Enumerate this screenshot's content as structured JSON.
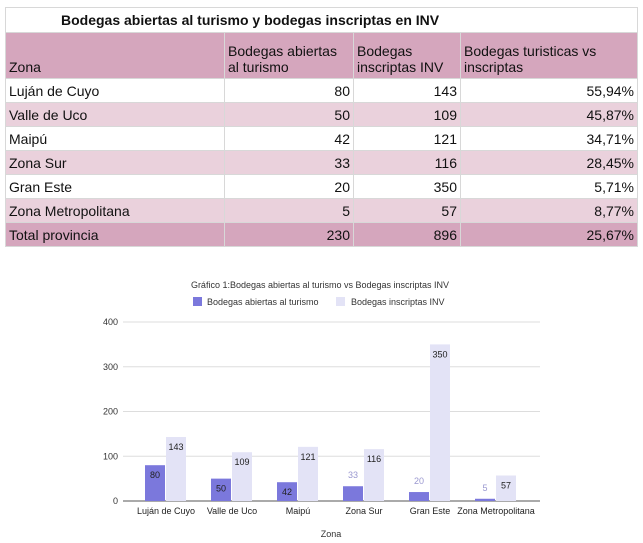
{
  "table": {
    "title": "Bodegas abiertas al turismo y bodegas inscriptas en INV",
    "headers": [
      "Zona",
      "Bodegas abiertas al turismo",
      "Bodegas inscriptas INV",
      "Bodegas turisticas vs inscriptas"
    ],
    "rows": [
      [
        "Luján de Cuyo",
        "80",
        "143",
        "55,94%"
      ],
      [
        "Valle de Uco",
        "50",
        "109",
        "45,87%"
      ],
      [
        "Maipú",
        "42",
        "121",
        "34,71%"
      ],
      [
        "Zona Sur",
        "33",
        "116",
        "28,45%"
      ],
      [
        "Gran Este",
        "20",
        "350",
        "5,71%"
      ],
      [
        "Zona Metropolitana",
        "5",
        "57",
        "8,77%"
      ]
    ],
    "total": [
      "Total provincia",
      "230",
      "896",
      "25,67%"
    ]
  },
  "chart_data": {
    "type": "bar",
    "title": "Gráfico 1:Bodegas abiertas al turismo vs Bodegas inscriptas INV",
    "xlabel": "Zona",
    "ylabel": "",
    "categories": [
      "Luján de Cuyo",
      "Valle de Uco",
      "Maipú",
      "Zona Sur",
      "Gran Este",
      "Zona Metropolitana"
    ],
    "series": [
      {
        "name": "Bodegas abiertas al turismo",
        "values": [
          80,
          50,
          42,
          33,
          20,
          5
        ],
        "color": "#7b78dc"
      },
      {
        "name": "Bodegas inscriptas INV",
        "values": [
          143,
          109,
          121,
          116,
          350,
          57
        ],
        "color": "#e3e3f6"
      }
    ],
    "ylim": [
      0,
      400
    ],
    "yticks": [
      0,
      100,
      200,
      300,
      400
    ],
    "grid": true,
    "legend": "top"
  }
}
